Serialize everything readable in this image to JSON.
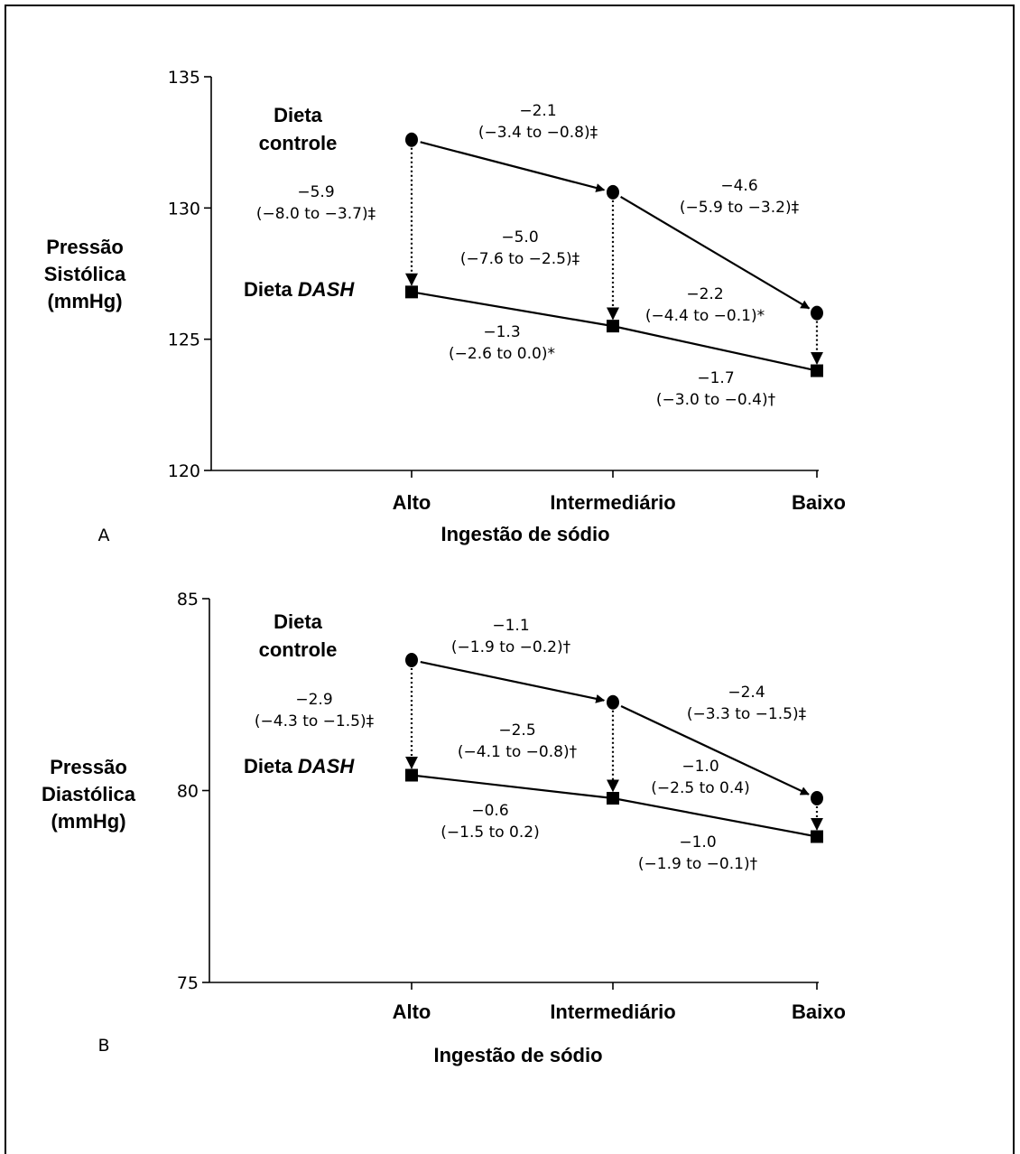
{
  "chart_data": [
    {
      "type": "line",
      "panel_label": "A",
      "ylabel": [
        "Pressão",
        "Sistólica",
        "(mmHg)"
      ],
      "xlabel": "Ingestão de sódio",
      "categories": [
        "Alto",
        "Intermediário",
        "Baixo"
      ],
      "ylim": [
        120,
        135
      ],
      "yticks": [
        120,
        125,
        130,
        135
      ],
      "series": [
        {
          "name_parts": [
            "Dieta",
            "controle"
          ],
          "marker": "circle",
          "values": [
            132.6,
            130.6,
            126.0
          ]
        },
        {
          "name_parts": [
            "Dieta ",
            "DASH"
          ],
          "marker": "square",
          "values": [
            126.8,
            125.5,
            123.8
          ]
        }
      ],
      "annotations": {
        "control_segments": [
          {
            "value": "−2.1",
            "ci": "(−3.4 to −0.8)‡"
          },
          {
            "value": "−4.6",
            "ci": "(−5.9 to −3.2)‡"
          }
        ],
        "dash_segments": [
          {
            "value": "−1.3",
            "ci": "(−2.6 to 0.0)*"
          },
          {
            "value": "−1.7",
            "ci": "(−3.0 to −0.4)†"
          }
        ],
        "diet_differences": [
          {
            "value": "−5.9",
            "ci": "(−8.0 to −3.7)‡"
          },
          {
            "value": "−5.0",
            "ci": "(−7.6 to −2.5)‡"
          },
          {
            "value": "−2.2",
            "ci": "(−4.4 to −0.1)*"
          }
        ]
      }
    },
    {
      "type": "line",
      "panel_label": "B",
      "ylabel": [
        "Pressão",
        "Diastólica",
        "(mmHg)"
      ],
      "xlabel": "Ingestão de sódio",
      "categories": [
        "Alto",
        "Intermediário",
        "Baixo"
      ],
      "ylim": [
        75,
        85
      ],
      "yticks": [
        75,
        80,
        85
      ],
      "series": [
        {
          "name_parts": [
            "Dieta",
            "controle"
          ],
          "marker": "circle",
          "values": [
            83.4,
            82.3,
            79.8
          ]
        },
        {
          "name_parts": [
            "Dieta ",
            "DASH"
          ],
          "marker": "square",
          "values": [
            80.4,
            79.8,
            78.8
          ]
        }
      ],
      "annotations": {
        "control_segments": [
          {
            "value": "−1.1",
            "ci": "(−1.9 to −0.2)†"
          },
          {
            "value": "−2.4",
            "ci": "(−3.3 to −1.5)‡"
          }
        ],
        "dash_segments": [
          {
            "value": "−0.6",
            "ci": "(−1.5 to 0.2)"
          },
          {
            "value": "−1.0",
            "ci": "(−1.9 to −0.1)†"
          }
        ],
        "diet_differences": [
          {
            "value": "−2.9",
            "ci": "(−4.3 to −1.5)‡"
          },
          {
            "value": "−2.5",
            "ci": "(−4.1 to −0.8)†"
          },
          {
            "value": "−1.0",
            "ci": "(−2.5 to 0.4)"
          }
        ]
      }
    }
  ]
}
